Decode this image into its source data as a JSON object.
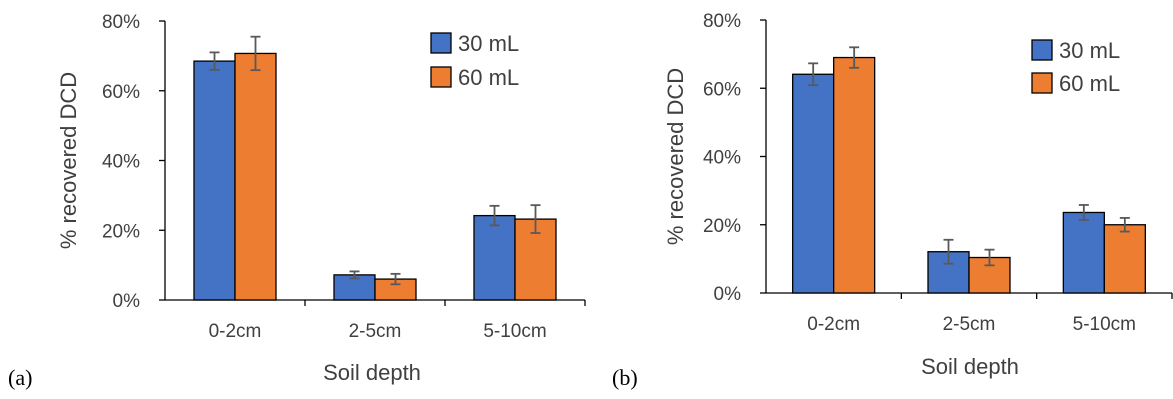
{
  "chart_data": [
    {
      "type": "bar",
      "panel_label": "(a)",
      "categories": [
        "0-2cm",
        "2-5cm",
        "5-10cm"
      ],
      "series": [
        {
          "name": "30 mL",
          "color": "#4472C4",
          "values": [
            0.685,
            0.072,
            0.242
          ],
          "errors": [
            0.025,
            0.01,
            0.028
          ]
        },
        {
          "name": "60 mL",
          "color": "#ED7D31",
          "values": [
            0.707,
            0.06,
            0.232
          ],
          "errors": [
            0.048,
            0.015,
            0.04
          ]
        }
      ],
      "xlabel": "Soil depth",
      "ylabel": "% recovered DCD",
      "ylim": [
        0,
        0.8
      ],
      "yticks": [
        "0%",
        "20%",
        "40%",
        "60%",
        "80%"
      ],
      "grid": false,
      "legend_position": "top-right"
    },
    {
      "type": "bar",
      "panel_label": "(b)",
      "categories": [
        "0-2cm",
        "2-5cm",
        "5-10cm"
      ],
      "series": [
        {
          "name": "30 mL",
          "color": "#4472C4",
          "values": [
            0.641,
            0.121,
            0.236
          ],
          "errors": [
            0.032,
            0.035,
            0.022
          ]
        },
        {
          "name": "60 mL",
          "color": "#ED7D31",
          "values": [
            0.69,
            0.104,
            0.2
          ],
          "errors": [
            0.03,
            0.023,
            0.02
          ]
        }
      ],
      "xlabel": "Soil depth",
      "ylabel": "% recovered DCD",
      "ylim": [
        0,
        0.8
      ],
      "yticks": [
        "0%",
        "20%",
        "40%",
        "60%",
        "80%"
      ],
      "grid": false,
      "legend_position": "top-right"
    }
  ]
}
